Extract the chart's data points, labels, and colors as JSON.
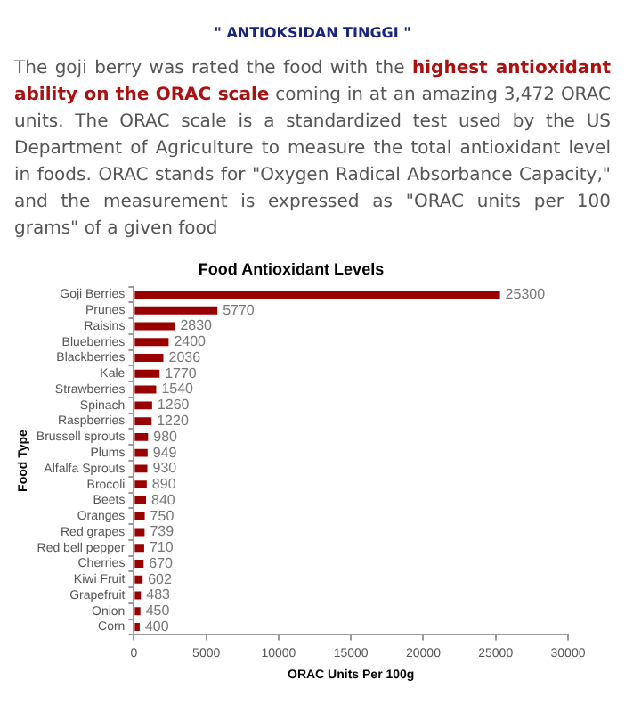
{
  "chart_data": {
    "type": "bar",
    "orientation": "horizontal",
    "title": "Food Antioxidant Levels",
    "xlabel": "ORAC Units Per 100g",
    "ylabel": "Food Type",
    "annotations": [
      "\" ANTIOKSIDAN TINGGI \"",
      "The goji berry was rated the food with the ",
      "highest antioxidant ability on the ORAC scale",
      " coming in at an amazing 3,472 ORAC units. The ORAC scale is a standardized test used by the US Department of Agriculture to measure the total antioxidant level in foods. ORAC stands for \"Oxygen Radical Absorbance Capacity,\" and the measurement is expressed as \"ORAC units per 100 grams\" of a given food"
    ],
    "categories": [
      "Goji Berries",
      "Prunes",
      "Raisins",
      "Blueberries",
      "Blackberries",
      "Kale",
      "Strawberries",
      "Spinach",
      "Raspberries",
      "Brussell sprouts",
      "Plums",
      "Alfalfa Sprouts",
      "Brocoli",
      "Beets",
      "Oranges",
      "Red grapes",
      "Red bell pepper",
      "Cherries",
      "Kiwi Fruit",
      "Grapefruit",
      "Onion",
      "Corn"
    ],
    "values": [
      25300,
      5770,
      2830,
      2400,
      2036,
      1770,
      1540,
      1260,
      1220,
      980,
      949,
      930,
      890,
      840,
      750,
      739,
      710,
      670,
      602,
      483,
      450,
      400
    ],
    "color": "#990000",
    "data_labels": true,
    "grid": false,
    "legend": false,
    "xlim": [
      0,
      30000
    ],
    "xticks": [
      0,
      5000,
      10000,
      15000,
      20000,
      25000,
      30000
    ]
  }
}
